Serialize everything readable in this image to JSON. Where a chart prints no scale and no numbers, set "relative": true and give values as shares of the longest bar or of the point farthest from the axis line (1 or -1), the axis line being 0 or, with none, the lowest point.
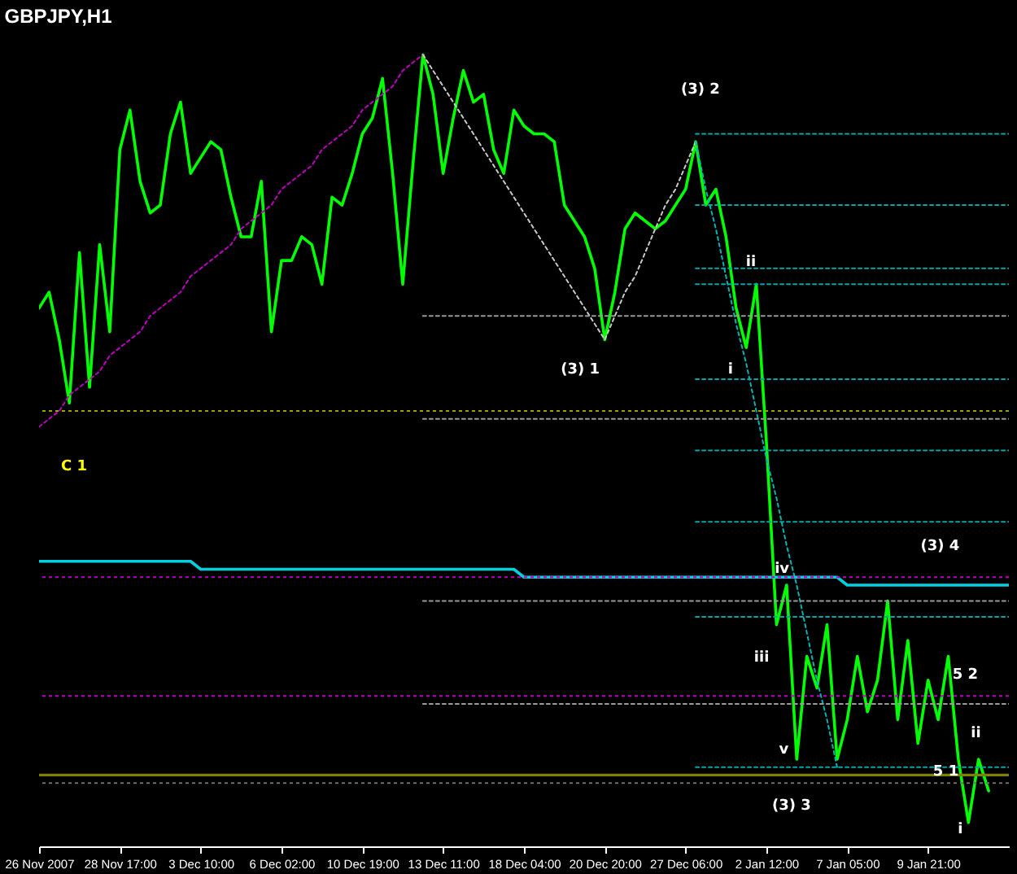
{
  "chart_data": {
    "type": "line",
    "title": "GBPJPY,H1",
    "relative": true,
    "categories": [
      "26 Nov 2007",
      null,
      null,
      null,
      null,
      null,
      null,
      null,
      "28 Nov 17:00",
      null,
      null,
      null,
      null,
      null,
      null,
      null,
      "3 Dec 10:00",
      null,
      null,
      null,
      null,
      null,
      null,
      null,
      "6 Dec 02:00",
      null,
      null,
      null,
      null,
      null,
      null,
      null,
      "10 Dec 19:00",
      null,
      null,
      null,
      null,
      null,
      null,
      null,
      "13 Dec 11:00",
      null,
      null,
      null,
      null,
      null,
      null,
      null,
      "18 Dec 04:00",
      null,
      null,
      null,
      null,
      null,
      null,
      null,
      "20 Dec 20:00",
      null,
      null,
      null,
      null,
      null,
      null,
      null,
      "27 Dec 06:00",
      null,
      null,
      null,
      null,
      null,
      null,
      null,
      "2 Jan 12:00",
      null,
      null,
      null,
      null,
      null,
      null,
      null,
      "7 Jan 05:00",
      null,
      null,
      null,
      null,
      null,
      null,
      null,
      "9 Jan 21:00",
      null,
      null,
      null,
      null,
      null,
      null,
      null,
      null
    ],
    "series": [
      {
        "color": "#00ff00",
        "values": [
          0.68,
          0.7,
          0.64,
          0.56,
          0.75,
          0.58,
          0.76,
          0.65,
          0.88,
          0.93,
          0.84,
          0.8,
          0.81,
          0.9,
          0.94,
          0.85,
          0.87,
          0.89,
          0.88,
          0.82,
          0.77,
          0.77,
          0.84,
          0.65,
          0.74,
          0.74,
          0.77,
          0.76,
          0.71,
          0.82,
          0.81,
          0.85,
          0.9,
          0.92,
          0.97,
          0.85,
          0.71,
          0.86,
          1.0,
          0.95,
          0.85,
          0.92,
          0.98,
          0.94,
          0.95,
          0.88,
          0.85,
          0.93,
          0.91,
          0.9,
          0.9,
          0.89,
          0.81,
          0.79,
          0.77,
          0.73,
          0.64,
          0.7,
          0.78,
          0.8,
          0.79,
          0.78,
          0.79,
          0.81,
          0.83,
          0.89,
          0.81,
          0.83,
          0.77,
          0.68,
          0.63,
          0.71,
          0.51,
          0.28,
          0.33,
          0.11,
          0.24,
          0.2,
          0.28,
          0.11,
          0.16,
          0.24,
          0.17,
          0.21,
          0.31,
          0.16,
          0.26,
          0.13,
          0.21,
          0.16,
          0.24,
          0.11,
          0.03,
          0.11,
          0.07,
          null,
          null
        ]
      },
      {
        "color": "#c000c0",
        "line_style": "dotted",
        "values": [
          0.53,
          0.54,
          0.55,
          0.57,
          0.58,
          0.59,
          0.6,
          0.62,
          0.63,
          0.64,
          0.65,
          0.67,
          0.68,
          0.69,
          0.7,
          0.72,
          0.73,
          0.74,
          0.75,
          0.76,
          0.78,
          0.79,
          0.8,
          0.81,
          0.83,
          0.84,
          0.85,
          0.86,
          0.88,
          0.89,
          0.9,
          0.91,
          0.93,
          0.94,
          0.95,
          0.96,
          0.98,
          0.99,
          1.0,
          null,
          null,
          null,
          null,
          null,
          null,
          null,
          null,
          null,
          null,
          null,
          null,
          null,
          null,
          null,
          null,
          null,
          null,
          null,
          null,
          null,
          null,
          null,
          null,
          null,
          null,
          null,
          null,
          null,
          null,
          null,
          null,
          null,
          null,
          null,
          null,
          null,
          null,
          null,
          null,
          null,
          null,
          null,
          null,
          null,
          null,
          null,
          null,
          null,
          null,
          null,
          null,
          null,
          null,
          null,
          null,
          null,
          null
        ]
      },
      {
        "color": "#c8c8c8",
        "line_style": "dotted",
        "values": [
          null,
          null,
          null,
          null,
          null,
          null,
          null,
          null,
          null,
          null,
          null,
          null,
          null,
          null,
          null,
          null,
          null,
          null,
          null,
          null,
          null,
          null,
          null,
          null,
          null,
          null,
          null,
          null,
          null,
          null,
          null,
          null,
          null,
          null,
          null,
          null,
          null,
          null,
          1.0,
          0.98,
          0.96,
          0.94,
          0.92,
          0.9,
          0.88,
          0.86,
          0.84,
          0.82,
          0.8,
          0.78,
          0.76,
          0.74,
          0.72,
          0.7,
          0.68,
          0.66,
          0.64,
          0.67,
          0.7,
          0.72,
          0.75,
          0.78,
          0.81,
          0.83,
          0.86,
          0.89,
          null,
          null,
          null,
          null,
          null,
          null,
          null,
          null,
          null,
          null,
          null,
          null,
          null,
          null,
          null,
          null,
          null,
          null,
          null,
          null,
          null,
          null,
          null,
          null,
          null,
          null,
          null,
          null,
          null,
          null,
          null
        ]
      },
      {
        "color": "#00b4b4",
        "line_style": "dotted",
        "values": [
          null,
          null,
          null,
          null,
          null,
          null,
          null,
          null,
          null,
          null,
          null,
          null,
          null,
          null,
          null,
          null,
          null,
          null,
          null,
          null,
          null,
          null,
          null,
          null,
          null,
          null,
          null,
          null,
          null,
          null,
          null,
          null,
          null,
          null,
          null,
          null,
          null,
          null,
          null,
          null,
          null,
          null,
          null,
          null,
          null,
          null,
          null,
          null,
          null,
          null,
          null,
          null,
          null,
          null,
          null,
          null,
          null,
          null,
          null,
          null,
          null,
          null,
          null,
          null,
          null,
          0.89,
          0.83,
          0.78,
          0.72,
          0.66,
          0.61,
          0.55,
          0.49,
          0.44,
          0.38,
          0.33,
          0.27,
          0.21,
          0.16,
          0.1,
          null,
          null,
          null,
          null,
          null,
          null,
          null,
          null,
          null,
          null,
          null,
          null,
          null,
          null,
          null,
          null,
          null
        ]
      },
      {
        "color": "#00d0e0",
        "values": [
          0.36,
          0.36,
          0.36,
          0.36,
          0.36,
          0.36,
          0.36,
          0.36,
          0.36,
          0.36,
          0.36,
          0.36,
          0.36,
          0.36,
          0.36,
          0.36,
          0.35,
          0.35,
          0.35,
          0.35,
          0.35,
          0.35,
          0.35,
          0.35,
          0.35,
          0.35,
          0.35,
          0.35,
          0.35,
          0.35,
          0.35,
          0.35,
          0.35,
          0.35,
          0.35,
          0.35,
          0.35,
          0.35,
          0.35,
          0.35,
          0.35,
          0.35,
          0.35,
          0.35,
          0.35,
          0.35,
          0.35,
          0.35,
          0.34,
          0.34,
          0.34,
          0.34,
          0.34,
          0.34,
          0.34,
          0.34,
          0.34,
          0.34,
          0.34,
          0.34,
          0.34,
          0.34,
          0.34,
          0.34,
          0.34,
          0.34,
          0.34,
          0.34,
          0.34,
          0.34,
          0.34,
          0.34,
          0.34,
          0.34,
          0.34,
          0.34,
          0.34,
          0.34,
          0.34,
          0.34,
          0.33,
          0.33,
          0.33,
          0.33,
          0.33,
          0.33,
          0.33,
          0.33,
          0.33,
          0.33,
          0.33,
          0.33,
          0.33,
          0.33,
          0.33,
          0.33,
          0.33
        ]
      },
      {
        "color": "#9a9a9a",
        "line_style": "dotted",
        "values": [
          null,
          null,
          null,
          null,
          null,
          null,
          null,
          null,
          null,
          null,
          null,
          null,
          null,
          null,
          null,
          null,
          null,
          null,
          null,
          null,
          null,
          null,
          null,
          null,
          null,
          null,
          null,
          null,
          null,
          null,
          null,
          null,
          null,
          null,
          null,
          null,
          null,
          null,
          0.67,
          0.67,
          0.67,
          0.67,
          0.67,
          0.67,
          0.67,
          0.67,
          0.67,
          0.67,
          0.67,
          0.67,
          0.67,
          0.67,
          0.67,
          0.67,
          0.67,
          0.67,
          0.67,
          0.67,
          0.67,
          0.67,
          0.67,
          0.67,
          0.67,
          0.67,
          0.67,
          0.67,
          0.67,
          0.67,
          0.67,
          0.67,
          0.67,
          0.67,
          0.67,
          0.67,
          0.67,
          0.67,
          0.67,
          0.67,
          0.67,
          0.67,
          0.67,
          0.67,
          0.67,
          0.67,
          0.67,
          0.67,
          0.67,
          0.67,
          0.67,
          0.67,
          0.67,
          0.67,
          0.67,
          0.67,
          0.67,
          0.67,
          0.67
        ]
      },
      {
        "color": "#9a9a9a",
        "line_style": "dotted",
        "values": [
          null,
          null,
          null,
          null,
          null,
          null,
          null,
          null,
          null,
          null,
          null,
          null,
          null,
          null,
          null,
          null,
          null,
          null,
          null,
          null,
          null,
          null,
          null,
          null,
          null,
          null,
          null,
          null,
          null,
          null,
          null,
          null,
          null,
          null,
          null,
          null,
          null,
          null,
          0.54,
          0.54,
          0.54,
          0.54,
          0.54,
          0.54,
          0.54,
          0.54,
          0.54,
          0.54,
          0.54,
          0.54,
          0.54,
          0.54,
          0.54,
          0.54,
          0.54,
          0.54,
          0.54,
          0.54,
          0.54,
          0.54,
          0.54,
          0.54,
          0.54,
          0.54,
          0.54,
          0.54,
          0.54,
          0.54,
          0.54,
          0.54,
          0.54,
          0.54,
          0.54,
          0.54,
          0.54,
          0.54,
          0.54,
          0.54,
          0.54,
          0.54,
          0.54,
          0.54,
          0.54,
          0.54,
          0.54,
          0.54,
          0.54,
          0.54,
          0.54,
          0.54,
          0.54,
          0.54,
          0.54,
          0.54,
          0.54,
          0.54,
          0.54
        ]
      },
      {
        "color": "#9a9a9a",
        "line_style": "dotted",
        "values": [
          null,
          null,
          null,
          null,
          null,
          null,
          null,
          null,
          null,
          null,
          null,
          null,
          null,
          null,
          null,
          null,
          null,
          null,
          null,
          null,
          null,
          null,
          null,
          null,
          null,
          null,
          null,
          null,
          null,
          null,
          null,
          null,
          null,
          null,
          null,
          null,
          null,
          null,
          0.31,
          0.31,
          0.31,
          0.31,
          0.31,
          0.31,
          0.31,
          0.31,
          0.31,
          0.31,
          0.31,
          0.31,
          0.31,
          0.31,
          0.31,
          0.31,
          0.31,
          0.31,
          0.31,
          0.31,
          0.31,
          0.31,
          0.31,
          0.31,
          0.31,
          0.31,
          0.31,
          0.31,
          0.31,
          0.31,
          0.31,
          0.31,
          0.31,
          0.31,
          0.31,
          0.31,
          0.31,
          0.31,
          0.31,
          0.31,
          0.31,
          0.31,
          0.31,
          0.31,
          0.31,
          0.31,
          0.31,
          0.31,
          0.31,
          0.31,
          0.31,
          0.31,
          0.31,
          0.31,
          0.31,
          0.31,
          0.31,
          0.31,
          0.31
        ]
      },
      {
        "color": "#9a9a9a",
        "line_style": "dotted",
        "values": [
          null,
          null,
          null,
          null,
          null,
          null,
          null,
          null,
          null,
          null,
          null,
          null,
          null,
          null,
          null,
          null,
          null,
          null,
          null,
          null,
          null,
          null,
          null,
          null,
          null,
          null,
          null,
          null,
          null,
          null,
          null,
          null,
          null,
          null,
          null,
          null,
          null,
          null,
          0.18,
          0.18,
          0.18,
          0.18,
          0.18,
          0.18,
          0.18,
          0.18,
          0.18,
          0.18,
          0.18,
          0.18,
          0.18,
          0.18,
          0.18,
          0.18,
          0.18,
          0.18,
          0.18,
          0.18,
          0.18,
          0.18,
          0.18,
          0.18,
          0.18,
          0.18,
          0.18,
          0.18,
          0.18,
          0.18,
          0.18,
          0.18,
          0.18,
          0.18,
          0.18,
          0.18,
          0.18,
          0.18,
          0.18,
          0.18,
          0.18,
          0.18,
          0.18,
          0.18,
          0.18,
          0.18,
          0.18,
          0.18,
          0.18,
          0.18,
          0.18,
          0.18,
          0.18,
          0.18,
          0.18,
          0.18,
          0.18,
          0.18,
          0.18
        ]
      },
      {
        "color": "#00a8a8",
        "line_style": "dotted",
        "values": [
          null,
          null,
          null,
          null,
          null,
          null,
          null,
          null,
          null,
          null,
          null,
          null,
          null,
          null,
          null,
          null,
          null,
          null,
          null,
          null,
          null,
          null,
          null,
          null,
          null,
          null,
          null,
          null,
          null,
          null,
          null,
          null,
          null,
          null,
          null,
          null,
          null,
          null,
          null,
          null,
          null,
          null,
          null,
          null,
          null,
          null,
          null,
          null,
          null,
          null,
          null,
          null,
          null,
          null,
          null,
          null,
          null,
          null,
          null,
          null,
          null,
          null,
          null,
          null,
          null,
          0.9,
          0.9,
          0.9,
          0.9,
          0.9,
          0.9,
          0.9,
          0.9,
          0.9,
          0.9,
          0.9,
          0.9,
          0.9,
          0.9,
          0.9,
          0.9,
          0.9,
          0.9,
          0.9,
          0.9,
          0.9,
          0.9,
          0.9,
          0.9,
          0.9,
          0.9,
          0.9,
          0.9,
          0.9,
          0.9,
          0.9,
          0.9
        ]
      },
      {
        "color": "#00a8a8",
        "line_style": "dotted",
        "values": [
          null,
          null,
          null,
          null,
          null,
          null,
          null,
          null,
          null,
          null,
          null,
          null,
          null,
          null,
          null,
          null,
          null,
          null,
          null,
          null,
          null,
          null,
          null,
          null,
          null,
          null,
          null,
          null,
          null,
          null,
          null,
          null,
          null,
          null,
          null,
          null,
          null,
          null,
          null,
          null,
          null,
          null,
          null,
          null,
          null,
          null,
          null,
          null,
          null,
          null,
          null,
          null,
          null,
          null,
          null,
          null,
          null,
          null,
          null,
          null,
          null,
          null,
          null,
          null,
          null,
          0.81,
          0.81,
          0.81,
          0.81,
          0.81,
          0.81,
          0.81,
          0.81,
          0.81,
          0.81,
          0.81,
          0.81,
          0.81,
          0.81,
          0.81,
          0.81,
          0.81,
          0.81,
          0.81,
          0.81,
          0.81,
          0.81,
          0.81,
          0.81,
          0.81,
          0.81,
          0.81,
          0.81,
          0.81,
          0.81,
          0.81,
          0.81
        ]
      },
      {
        "color": "#00a8a8",
        "line_style": "dotted",
        "values": [
          null,
          null,
          null,
          null,
          null,
          null,
          null,
          null,
          null,
          null,
          null,
          null,
          null,
          null,
          null,
          null,
          null,
          null,
          null,
          null,
          null,
          null,
          null,
          null,
          null,
          null,
          null,
          null,
          null,
          null,
          null,
          null,
          null,
          null,
          null,
          null,
          null,
          null,
          null,
          null,
          null,
          null,
          null,
          null,
          null,
          null,
          null,
          null,
          null,
          null,
          null,
          null,
          null,
          null,
          null,
          null,
          null,
          null,
          null,
          null,
          null,
          null,
          null,
          null,
          null,
          0.73,
          0.73,
          0.73,
          0.73,
          0.73,
          0.73,
          0.73,
          0.73,
          0.73,
          0.73,
          0.73,
          0.73,
          0.73,
          0.73,
          0.73,
          0.73,
          0.73,
          0.73,
          0.73,
          0.73,
          0.73,
          0.73,
          0.73,
          0.73,
          0.73,
          0.73,
          0.73,
          0.73,
          0.73,
          0.73,
          0.73,
          0.73
        ]
      },
      {
        "color": "#00a8a8",
        "line_style": "dotted",
        "values": [
          null,
          null,
          null,
          null,
          null,
          null,
          null,
          null,
          null,
          null,
          null,
          null,
          null,
          null,
          null,
          null,
          null,
          null,
          null,
          null,
          null,
          null,
          null,
          null,
          null,
          null,
          null,
          null,
          null,
          null,
          null,
          null,
          null,
          null,
          null,
          null,
          null,
          null,
          null,
          null,
          null,
          null,
          null,
          null,
          null,
          null,
          null,
          null,
          null,
          null,
          null,
          null,
          null,
          null,
          null,
          null,
          null,
          null,
          null,
          null,
          null,
          null,
          null,
          null,
          null,
          0.71,
          0.71,
          0.71,
          0.71,
          0.71,
          0.71,
          0.71,
          0.71,
          0.71,
          0.71,
          0.71,
          0.71,
          0.71,
          0.71,
          0.71,
          0.71,
          0.71,
          0.71,
          0.71,
          0.71,
          0.71,
          0.71,
          0.71,
          0.71,
          0.71,
          0.71,
          0.71,
          0.71,
          0.71,
          0.71,
          0.71,
          0.71
        ]
      },
      {
        "color": "#00a8a8",
        "line_style": "dotted",
        "values": [
          null,
          null,
          null,
          null,
          null,
          null,
          null,
          null,
          null,
          null,
          null,
          null,
          null,
          null,
          null,
          null,
          null,
          null,
          null,
          null,
          null,
          null,
          null,
          null,
          null,
          null,
          null,
          null,
          null,
          null,
          null,
          null,
          null,
          null,
          null,
          null,
          null,
          null,
          null,
          null,
          null,
          null,
          null,
          null,
          null,
          null,
          null,
          null,
          null,
          null,
          null,
          null,
          null,
          null,
          null,
          null,
          null,
          null,
          null,
          null,
          null,
          null,
          null,
          null,
          null,
          0.59,
          0.59,
          0.59,
          0.59,
          0.59,
          0.59,
          0.59,
          0.59,
          0.59,
          0.59,
          0.59,
          0.59,
          0.59,
          0.59,
          0.59,
          0.59,
          0.59,
          0.59,
          0.59,
          0.59,
          0.59,
          0.59,
          0.59,
          0.59,
          0.59,
          0.59,
          0.59,
          0.59,
          0.59,
          0.59,
          0.59,
          0.59
        ]
      },
      {
        "color": "#00a8a8",
        "line_style": "dotted",
        "values": [
          null,
          null,
          null,
          null,
          null,
          null,
          null,
          null,
          null,
          null,
          null,
          null,
          null,
          null,
          null,
          null,
          null,
          null,
          null,
          null,
          null,
          null,
          null,
          null,
          null,
          null,
          null,
          null,
          null,
          null,
          null,
          null,
          null,
          null,
          null,
          null,
          null,
          null,
          null,
          null,
          null,
          null,
          null,
          null,
          null,
          null,
          null,
          null,
          null,
          null,
          null,
          null,
          null,
          null,
          null,
          null,
          null,
          null,
          null,
          null,
          null,
          null,
          null,
          null,
          null,
          0.5,
          0.5,
          0.5,
          0.5,
          0.5,
          0.5,
          0.5,
          0.5,
          0.5,
          0.5,
          0.5,
          0.5,
          0.5,
          0.5,
          0.5,
          0.5,
          0.5,
          0.5,
          0.5,
          0.5,
          0.5,
          0.5,
          0.5,
          0.5,
          0.5,
          0.5,
          0.5,
          0.5,
          0.5,
          0.5,
          0.5,
          0.5
        ]
      },
      {
        "color": "#00a8a8",
        "line_style": "dotted",
        "values": [
          null,
          null,
          null,
          null,
          null,
          null,
          null,
          null,
          null,
          null,
          null,
          null,
          null,
          null,
          null,
          null,
          null,
          null,
          null,
          null,
          null,
          null,
          null,
          null,
          null,
          null,
          null,
          null,
          null,
          null,
          null,
          null,
          null,
          null,
          null,
          null,
          null,
          null,
          null,
          null,
          null,
          null,
          null,
          null,
          null,
          null,
          null,
          null,
          null,
          null,
          null,
          null,
          null,
          null,
          null,
          null,
          null,
          null,
          null,
          null,
          null,
          null,
          null,
          null,
          null,
          0.41,
          0.41,
          0.41,
          0.41,
          0.41,
          0.41,
          0.41,
          0.41,
          0.41,
          0.41,
          0.41,
          0.41,
          0.41,
          0.41,
          0.41,
          0.41,
          0.41,
          0.41,
          0.41,
          0.41,
          0.41,
          0.41,
          0.41,
          0.41,
          0.41,
          0.41,
          0.41,
          0.41,
          0.41,
          0.41,
          0.41,
          0.41
        ]
      },
      {
        "color": "#00a8a8",
        "line_style": "dotted",
        "values": [
          null,
          null,
          null,
          null,
          null,
          null,
          null,
          null,
          null,
          null,
          null,
          null,
          null,
          null,
          null,
          null,
          null,
          null,
          null,
          null,
          null,
          null,
          null,
          null,
          null,
          null,
          null,
          null,
          null,
          null,
          null,
          null,
          null,
          null,
          null,
          null,
          null,
          null,
          null,
          null,
          null,
          null,
          null,
          null,
          null,
          null,
          null,
          null,
          null,
          null,
          null,
          null,
          null,
          null,
          null,
          null,
          null,
          null,
          null,
          null,
          null,
          null,
          null,
          null,
          null,
          0.29,
          0.29,
          0.29,
          0.29,
          0.29,
          0.29,
          0.29,
          0.29,
          0.29,
          0.29,
          0.29,
          0.29,
          0.29,
          0.29,
          0.29,
          0.29,
          0.29,
          0.29,
          0.29,
          0.29,
          0.29,
          0.29,
          0.29,
          0.29,
          0.29,
          0.29,
          0.29,
          0.29,
          0.29,
          0.29,
          0.29,
          0.29
        ]
      },
      {
        "color": "#00a8a8",
        "line_style": "dotted",
        "values": [
          null,
          null,
          null,
          null,
          null,
          null,
          null,
          null,
          null,
          null,
          null,
          null,
          null,
          null,
          null,
          null,
          null,
          null,
          null,
          null,
          null,
          null,
          null,
          null,
          null,
          null,
          null,
          null,
          null,
          null,
          null,
          null,
          null,
          null,
          null,
          null,
          null,
          null,
          null,
          null,
          null,
          null,
          null,
          null,
          null,
          null,
          null,
          null,
          null,
          null,
          null,
          null,
          null,
          null,
          null,
          null,
          null,
          null,
          null,
          null,
          null,
          null,
          null,
          null,
          null,
          0.1,
          0.1,
          0.1,
          0.1,
          0.1,
          0.1,
          0.1,
          0.1,
          0.1,
          0.1,
          0.1,
          0.1,
          0.1,
          0.1,
          0.1,
          0.1,
          0.1,
          0.1,
          0.1,
          0.1,
          0.1,
          0.1,
          0.1,
          0.1,
          0.1,
          0.1,
          0.1,
          0.1,
          0.1,
          0.1,
          0.1,
          0.1
        ]
      }
    ],
    "ref_lines": [
      {
        "axis": "y",
        "value": 0.55,
        "color": "#a0a000",
        "line_style": "dotted"
      },
      {
        "axis": "y",
        "value": 0.34,
        "color": "#c000c0",
        "line_style": "dotted"
      },
      {
        "axis": "y",
        "value": 0.19,
        "color": "#c000c0",
        "line_style": "dotted"
      },
      {
        "axis": "y",
        "value": 0.09,
        "color": "#808000"
      },
      {
        "axis": "y",
        "value": 0.08,
        "color": "#707070",
        "line_style": "dotted"
      }
    ],
    "annotations": [
      "(3) 2",
      "(3) 1",
      "ii",
      "i",
      "C 1",
      "(3) 4",
      "iv",
      "iii",
      "v",
      "(3) 3",
      "5 2",
      "5 1",
      "ii",
      "i"
    ]
  }
}
